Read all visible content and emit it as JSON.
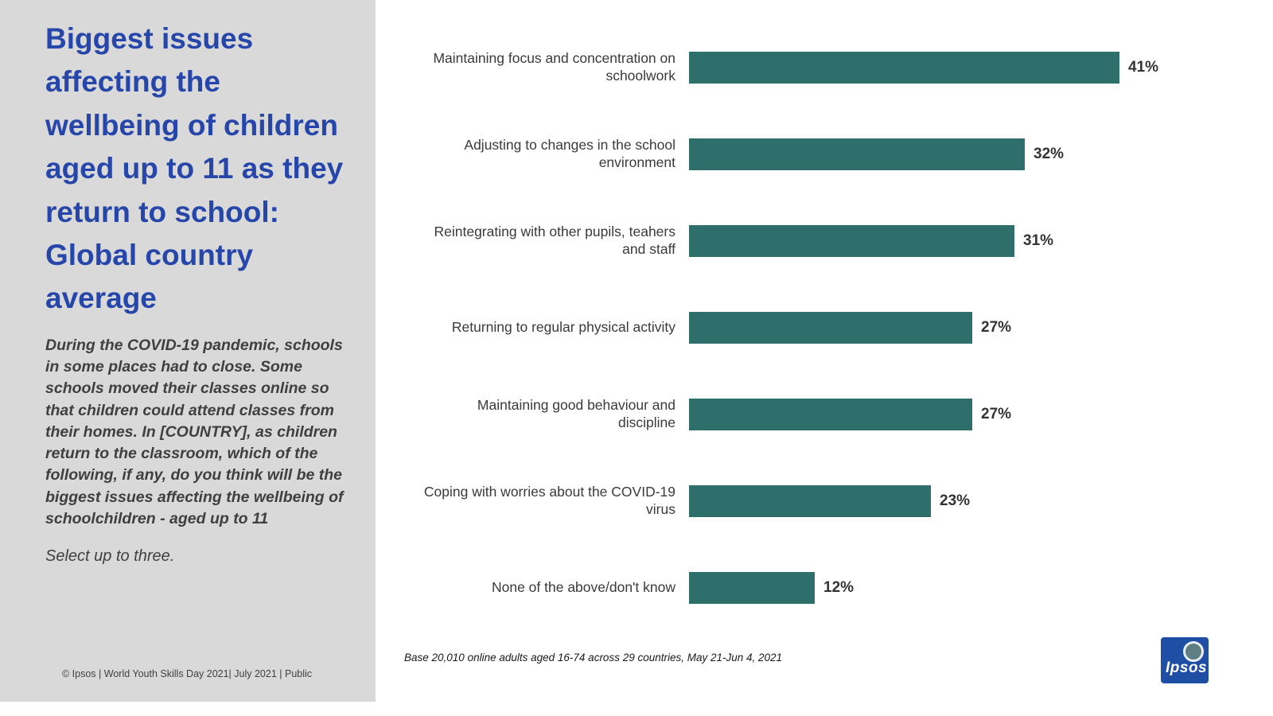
{
  "sidebar": {
    "title": "Biggest issues affecting the wellbeing of children aged up to 11 as they return to school: Global country average",
    "description": "During the COVID-19 pandemic, schools in some places had to close. Some schools moved their classes online so that children could attend classes from their homes. In [COUNTRY], as children return to the classroom, which of the following, if any, do you think will be the biggest issues affecting the wellbeing of schoolchildren - aged up to 11",
    "select_note": "Select up to three.",
    "footer": "© Ipsos | World Youth Skills Day 2021| July 2021 | Public"
  },
  "chart_data": {
    "type": "bar",
    "orientation": "horizontal",
    "title": "Biggest issues affecting the wellbeing of children aged up to 11 as they return to school: Global country average",
    "categories": [
      "Maintaining focus and concentration on schoolwork",
      "Adjusting to changes in the school environment",
      "Reintegrating with other pupils, teahers and staff",
      "Returning to regular physical activity",
      "Maintaining good behaviour and discipline",
      "Coping with worries about the COVID-19 virus",
      "None of the above/don't know"
    ],
    "values": [
      41,
      32,
      31,
      27,
      27,
      23,
      12
    ],
    "value_labels": [
      "41%",
      "32%",
      "31%",
      "27%",
      "27%",
      "23%",
      "12%"
    ],
    "xlim": [
      0,
      45
    ],
    "grid": false,
    "legend": "none",
    "bar_color": "#2f6f6b"
  },
  "base_note": "Base 20,010 online adults aged 16-74 across 29 countries,  May 21-Jun 4, 2021",
  "logo": {
    "text": "Ipsos"
  },
  "colors": {
    "accent_blue": "#2646a9",
    "bar_teal": "#2f6f6b",
    "sidebar_gray": "#d9d9d9"
  }
}
